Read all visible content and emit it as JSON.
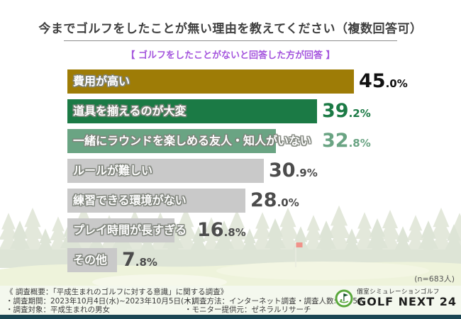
{
  "page": {
    "title": "今までゴルフをしたことが無い理由を教えてください（複数回答可）",
    "subtitle": "【 ゴルフをしたことがないと回答した方が回答 】",
    "sample_note": "(n=683人)"
  },
  "colors": {
    "subtitle_accent": "#a455dd",
    "bar_gold": "#9e7c06",
    "bar_green": "#1b7a45",
    "bar_light_green": "#6aa483",
    "bar_gray": "#c9c9c9",
    "bottom_bar": "#1a4653",
    "footer_background": "#f4f8ee"
  },
  "chart_data": {
    "type": "bar",
    "orientation": "horizontal",
    "title": "今までゴルフをしたことが無い理由を教えてください（複数回答可）",
    "subtitle": "【 ゴルフをしたことがないと回答した方が回答 】",
    "categories": [
      "費用が高い",
      "道具を揃えるのが大変",
      "一緒にラウンドを楽しめる友人・知人がいない",
      "ルールが難しい",
      "練習できる環境がない",
      "プレイ時間が長すぎる",
      "その他"
    ],
    "values": [
      45.0,
      39.2,
      32.8,
      30.9,
      28.0,
      16.8,
      7.8
    ],
    "value_labels": [
      "45.0%",
      "39.2%",
      "32.8%",
      "30.9%",
      "28.0%",
      "16.8%",
      "7.8%"
    ],
    "unit": "%",
    "xlim": [
      0,
      50
    ],
    "grid": false,
    "legend": "none",
    "sample_size": "n=683人",
    "bar_colors": [
      "#9e7c06",
      "#1b7a45",
      "#6aa483",
      "#c9c9c9",
      "#c9c9c9",
      "#c9c9c9",
      "#c9c9c9"
    ],
    "value_colors": [
      "#111111",
      "#1b7a45",
      "#6aa483",
      "#4c4c4c",
      "#4c4c4c",
      "#4c4c4c",
      "#4c4c4c"
    ]
  },
  "footer": {
    "overview": "《 調査概要：「平成生まれのゴルフに対する意識」に関する調査》",
    "period": "・調査期間：2023年10月4日(水)~2023年10月5日(木)",
    "subject": "・調査対象：平成生まれの男女",
    "method": "・調査方法：インターネット調査",
    "monitor": "・モニター提供元：ゼネラルリサーチ",
    "count": "・調査人数:1,005人",
    "logo_top": "個室シミュレーションゴルフ",
    "logo_main": "GOLF NEXT 24"
  }
}
